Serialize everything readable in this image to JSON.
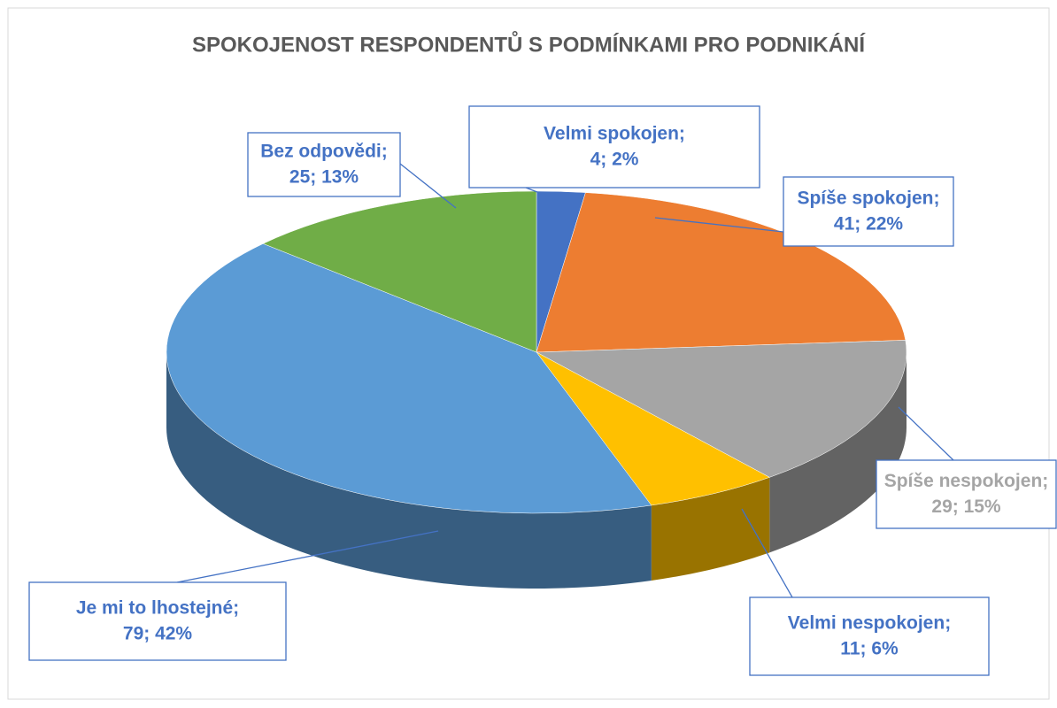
{
  "chart_data": {
    "type": "pie3d",
    "title": "SPOKOJENOST RESPONDENTŮ S PODMÍNKAMI PRO PODNIKÁNÍ",
    "categories": [
      "Velmi spokojen;",
      "Spíše spokojen;",
      "Spíše nespokojen;",
      "Velmi nespokojen;",
      "Je mi to lhostejné;",
      "Bez odpovědi;"
    ],
    "values": [
      4,
      41,
      29,
      11,
      79,
      25
    ],
    "value_labels": [
      "4; 2%",
      "41; 22%",
      "29; 15%",
      "11; 6%",
      "79; 42%",
      "25; 13%"
    ],
    "colors": [
      "#4472c4",
      "#ed7d31",
      "#a5a5a5",
      "#ffc000",
      "#5b9bd5",
      "#70ad47"
    ]
  }
}
